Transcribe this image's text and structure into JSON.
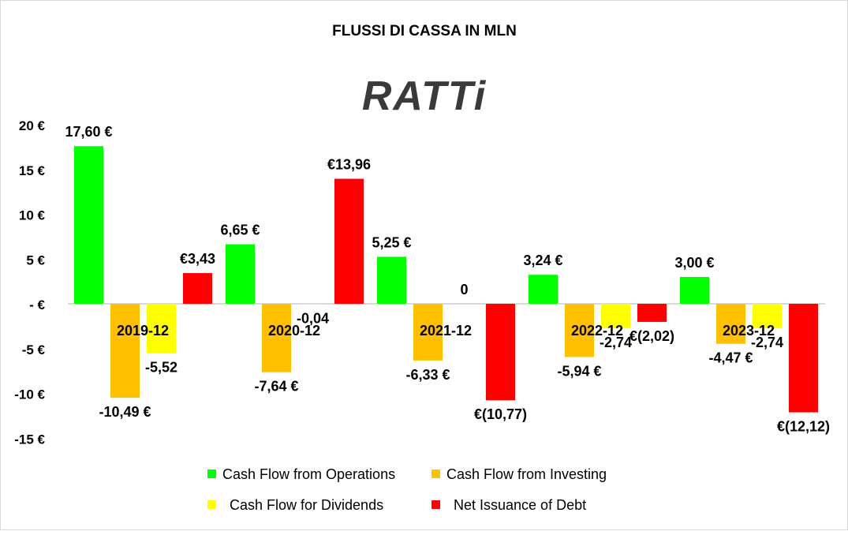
{
  "chart_data": {
    "type": "bar",
    "title": "FLUSSI DI CASSA IN MLN",
    "logo_text": "RATTi",
    "categories": [
      "2019-12",
      "2020-12",
      "2021-12",
      "2022-12",
      "2023-12"
    ],
    "ylim": [
      -15,
      20
    ],
    "yticks": [
      20,
      15,
      10,
      5,
      0,
      -5,
      -10,
      -15
    ],
    "ytick_labels": [
      "20 €",
      "15 €",
      "10 €",
      "5 €",
      "- €",
      "-5 €",
      "-10 €",
      "-15 €"
    ],
    "legend_position": "bottom",
    "series": [
      {
        "name": "Cash Flow from Operations",
        "color": "#00ff00",
        "values": [
          17.6,
          6.65,
          5.25,
          3.24,
          3.0
        ],
        "labels": [
          "17,60 €",
          "6,65 €",
          "5,25 €",
          "3,24 €",
          "3,00 €"
        ]
      },
      {
        "name": "Cash Flow from Investing",
        "color": "#ffc000",
        "values": [
          -10.49,
          -7.64,
          -6.33,
          -5.94,
          -4.47
        ],
        "labels": [
          "-10,49 €",
          "-7,64 €",
          "-6,33 €",
          "-5,94 €",
          "-4,47 €"
        ]
      },
      {
        "name": "Cash Flow for Dividends",
        "color": "#ffff00",
        "values": [
          -5.52,
          -0.04,
          0,
          -2.74,
          -2.74
        ],
        "labels": [
          "-5,52",
          "-0,04",
          "0",
          "-2,74",
          "-2,74"
        ]
      },
      {
        "name": "Net Issuance of Debt",
        "color": "#ff0000",
        "values": [
          3.43,
          13.96,
          -10.77,
          -2.02,
          -12.12
        ],
        "labels": [
          "€3,43",
          "€13,96",
          "€(10,77)",
          "€(2,02)",
          "€(12,12)"
        ]
      }
    ]
  }
}
